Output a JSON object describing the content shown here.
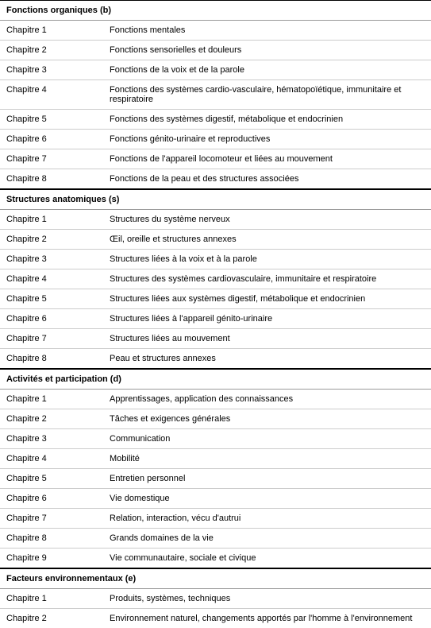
{
  "sections": [
    {
      "title": "Fonctions organiques (b)",
      "rows": [
        {
          "chapter": "Chapitre 1",
          "desc": "Fonctions mentales"
        },
        {
          "chapter": "Chapitre 2",
          "desc": "Fonctions sensorielles et douleurs"
        },
        {
          "chapter": "Chapitre 3",
          "desc": "Fonctions de la voix et de la parole"
        },
        {
          "chapter": "Chapitre 4",
          "desc": "Fonctions des systèmes cardio-vasculaire, hématopoïétique, immunitaire et respiratoire"
        },
        {
          "chapter": "Chapitre 5",
          "desc": "Fonctions des systèmes digestif, métabolique et endocrinien"
        },
        {
          "chapter": "Chapitre 6",
          "desc": "Fonctions génito-urinaire et reproductives"
        },
        {
          "chapter": "Chapitre 7",
          "desc": "Fonctions de l'appareil locomoteur et liées au mouvement"
        },
        {
          "chapter": "Chapitre 8",
          "desc": "Fonctions de la peau et des structures associées"
        }
      ]
    },
    {
      "title": "Structures anatomiques (s)",
      "rows": [
        {
          "chapter": "Chapitre 1",
          "desc": "Structures du système nerveux"
        },
        {
          "chapter": "Chapitre 2",
          "desc": "Œil, oreille et structures annexes"
        },
        {
          "chapter": "Chapitre 3",
          "desc": "Structures liées à la voix et à la parole"
        },
        {
          "chapter": "Chapitre 4",
          "desc": "Structures des systèmes cardiovasculaire, immunitaire et respiratoire"
        },
        {
          "chapter": "Chapitre 5",
          "desc": "Structures liées aux systèmes digestif, métabolique et endocrinien"
        },
        {
          "chapter": "Chapitre 6",
          "desc": "Structures liées à l'appareil génito-urinaire"
        },
        {
          "chapter": "Chapitre 7",
          "desc": "Structures liées au mouvement"
        },
        {
          "chapter": "Chapitre 8",
          "desc": "Peau et structures annexes"
        }
      ]
    },
    {
      "title": "Activités et participation (d)",
      "rows": [
        {
          "chapter": "Chapitre 1",
          "desc": "Apprentissages, application des connaissances"
        },
        {
          "chapter": "Chapitre 2",
          "desc": "Tâches et exigences générales"
        },
        {
          "chapter": "Chapitre 3",
          "desc": "Communication"
        },
        {
          "chapter": "Chapitre 4",
          "desc": "Mobilité"
        },
        {
          "chapter": "Chapitre 5",
          "desc": "Entretien personnel"
        },
        {
          "chapter": "Chapitre 6",
          "desc": "Vie domestique"
        },
        {
          "chapter": "Chapitre 7",
          "desc": "Relation, interaction, vécu d'autrui"
        },
        {
          "chapter": "Chapitre 8",
          "desc": "Grands domaines de la vie"
        },
        {
          "chapter": "Chapitre 9",
          "desc": "Vie communautaire, sociale et civique"
        }
      ]
    },
    {
      "title": "Facteurs environnementaux (e)",
      "rows": [
        {
          "chapter": "Chapitre 1",
          "desc": "Produits, systèmes, techniques"
        },
        {
          "chapter": "Chapitre 2",
          "desc": "Environnement naturel, changements apportés par l'homme à l'environnement"
        }
      ]
    }
  ]
}
